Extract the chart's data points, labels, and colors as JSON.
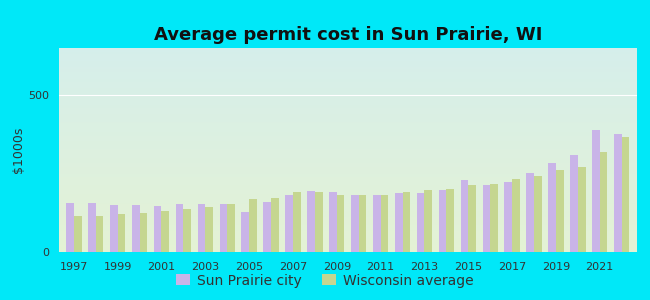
{
  "title": "Average permit cost in Sun Prairie, WI",
  "ylabel": "$1000s",
  "years": [
    1997,
    1998,
    1999,
    2000,
    2001,
    2002,
    2003,
    2004,
    2005,
    2006,
    2007,
    2008,
    2009,
    2010,
    2011,
    2012,
    2013,
    2014,
    2015,
    2016,
    2017,
    2018,
    2019,
    2020,
    2021,
    2022
  ],
  "sun_prairie": [
    155,
    155,
    150,
    150,
    148,
    153,
    153,
    153,
    128,
    158,
    183,
    195,
    190,
    183,
    183,
    188,
    188,
    198,
    228,
    213,
    223,
    253,
    283,
    308,
    390,
    375
  ],
  "wisconsin": [
    115,
    115,
    120,
    125,
    132,
    137,
    142,
    153,
    170,
    172,
    190,
    192,
    183,
    183,
    183,
    192,
    197,
    202,
    212,
    218,
    232,
    242,
    262,
    272,
    318,
    368
  ],
  "sun_prairie_color": "#c9b4e8",
  "wisconsin_color": "#c5d690",
  "background_outer": "#00e8f8",
  "background_inner_top": "#d5eeeb",
  "background_inner_bottom": "#e4f2d4",
  "ylim": [
    0,
    650
  ],
  "yticks": [
    0,
    500
  ],
  "xtick_years": [
    1997,
    1999,
    2001,
    2003,
    2005,
    2007,
    2009,
    2011,
    2013,
    2015,
    2017,
    2019,
    2021
  ],
  "legend_sun_prairie": "Sun Prairie city",
  "legend_wisconsin": "Wisconsin average",
  "title_fontsize": 13,
  "axis_label_fontsize": 9,
  "tick_fontsize": 8,
  "bar_width": 0.35
}
